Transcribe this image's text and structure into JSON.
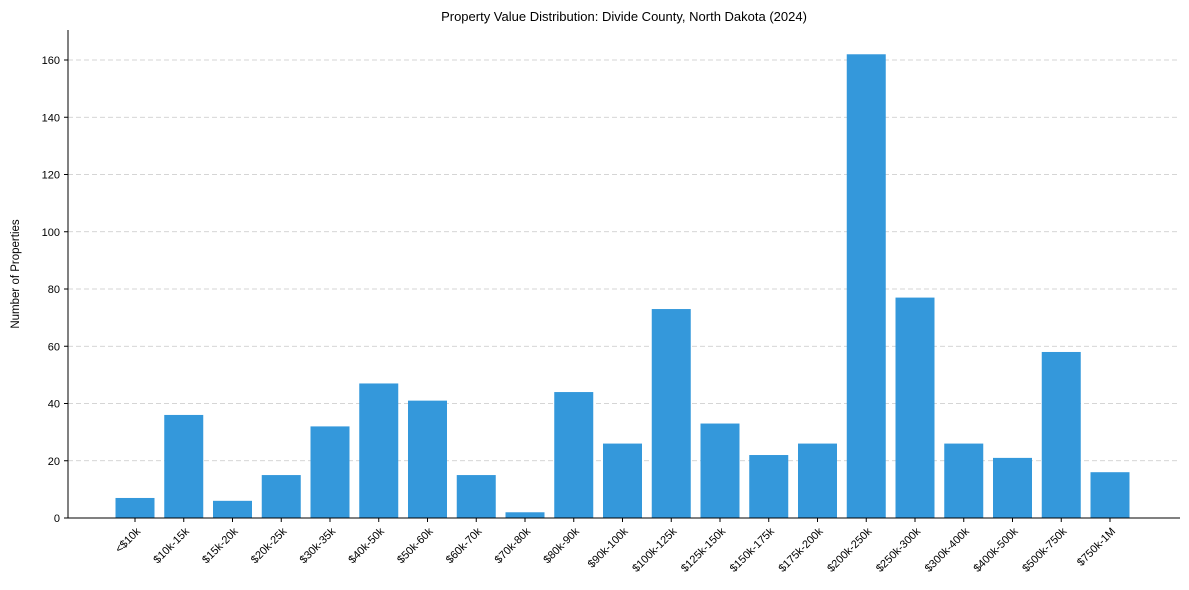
{
  "chart_data": {
    "type": "bar",
    "title": "Property Value Distribution: Divide County, North Dakota (2024)",
    "xlabel": "",
    "ylabel": "Number of Properties",
    "ylim": [
      0,
      170
    ],
    "yticks": [
      0,
      20,
      40,
      60,
      80,
      100,
      120,
      140,
      160
    ],
    "grid": "y-dashed",
    "bar_color": "#3498db",
    "categories": [
      "<$10k",
      "$10k-15k",
      "$15k-20k",
      "$20k-25k",
      "$30k-35k",
      "$40k-50k",
      "$50k-60k",
      "$60k-70k",
      "$70k-80k",
      "$80k-90k",
      "$90k-100k",
      "$100k-125k",
      "$125k-150k",
      "$150k-175k",
      "$175k-200k",
      "$200k-250k",
      "$250k-300k",
      "$300k-400k",
      "$400k-500k",
      "$500k-750k",
      "$750k-1M"
    ],
    "values": [
      7,
      36,
      6,
      15,
      32,
      47,
      41,
      15,
      2,
      44,
      26,
      73,
      33,
      22,
      26,
      162,
      77,
      26,
      21,
      58,
      16
    ]
  }
}
